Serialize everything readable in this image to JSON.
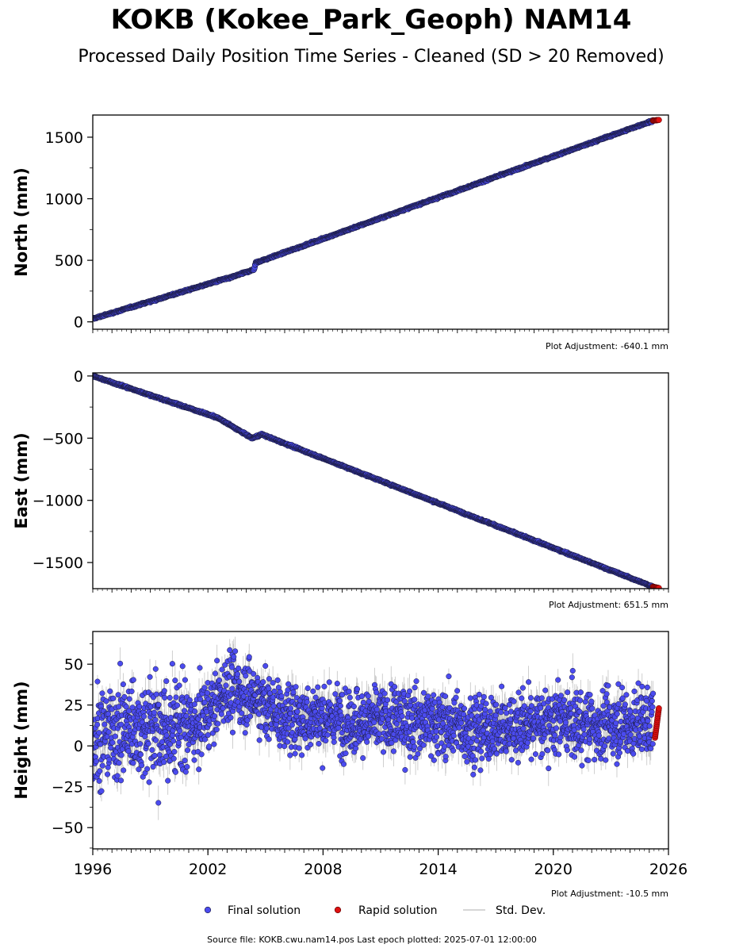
{
  "figure": {
    "title": "KOKB (Kokee_Park_Geoph) NAM14",
    "subtitle": "Processed Daily Position Time Series - Cleaned (SD > 20 Removed)",
    "footer": "Source file: KOKB.cwu.nam14.pos  Last epoch plotted: 2025-07-01 12:00:00"
  },
  "legend": {
    "placement": "bottom-center",
    "final_label": "Final solution",
    "rapid_label": "Rapid solution",
    "std_label": "Std. Dev."
  },
  "colors": {
    "final": "#4b4bef",
    "final_edge": "#1a1a3a",
    "rapid": "#dd1111",
    "std": "#b4b4b4"
  },
  "chart_data": [
    {
      "type": "scatter",
      "ylabel": "North (mm)",
      "adjustment": "Plot Adjustment: -640.1 mm",
      "xlim": [
        1996,
        2026
      ],
      "ylim": [
        -60,
        1680
      ],
      "yticks": [
        0,
        500,
        1000,
        1500
      ],
      "ytick_labels": [
        "0",
        "500",
        "1000",
        "1500"
      ],
      "series": [
        {
          "name": "Final solution",
          "x": [
            1996.0,
            2002.9,
            2003.0,
            2004.4,
            2004.5,
            2025.2
          ],
          "y": [
            25,
            350,
            350,
            425,
            480,
            1635
          ]
        },
        {
          "name": "Rapid solution",
          "x": [
            2025.2,
            2025.5
          ],
          "y": [
            1635,
            1640
          ]
        }
      ]
    },
    {
      "type": "scatter",
      "ylabel": "East (mm)",
      "adjustment": "Plot Adjustment: 651.5 mm",
      "xlim": [
        1996,
        2026
      ],
      "ylim": [
        -1710,
        25
      ],
      "yticks": [
        0,
        -500,
        -1000,
        -1500
      ],
      "ytick_labels": [
        "0",
        "−500",
        "−1000",
        "−1500"
      ],
      "series": [
        {
          "name": "Final solution",
          "x": [
            1996.0,
            2002.5,
            2004.3,
            2004.8,
            2025.2
          ],
          "y": [
            0,
            -335,
            -500,
            -470,
            -1695
          ]
        },
        {
          "name": "Rapid solution",
          "x": [
            2025.2,
            2025.5
          ],
          "y": [
            -1695,
            -1705
          ]
        }
      ]
    },
    {
      "type": "scatter",
      "ylabel": "Height (mm)",
      "adjustment": "Plot Adjustment: -10.5 mm",
      "xlim": [
        1996,
        2026
      ],
      "ylim": [
        -63,
        70
      ],
      "yticks": [
        50,
        25,
        0,
        -25,
        -50
      ],
      "ytick_labels": [
        "50",
        "25",
        "0",
        "−25",
        "−50"
      ],
      "xticks": [
        1996,
        2002,
        2008,
        2014,
        2020,
        2026
      ],
      "xtick_labels": [
        "1996",
        "2002",
        "2008",
        "2014",
        "2020",
        "2026"
      ],
      "series": [
        {
          "name": "Final solution",
          "x": [
            1996,
            1998,
            2000,
            2001.5,
            2003,
            2004.5,
            2006,
            2008,
            2010,
            2012,
            2014,
            2016,
            2018,
            2020,
            2022,
            2024,
            2025.2
          ],
          "y": [
            5,
            12,
            10,
            12,
            35,
            30,
            17,
            18,
            15,
            16,
            15,
            9,
            12,
            15,
            12,
            13,
            15
          ]
        },
        {
          "name": "Rapid solution",
          "x": [
            2025.3,
            2025.4,
            2025.5
          ],
          "y": [
            10,
            15,
            20
          ]
        }
      ]
    }
  ]
}
